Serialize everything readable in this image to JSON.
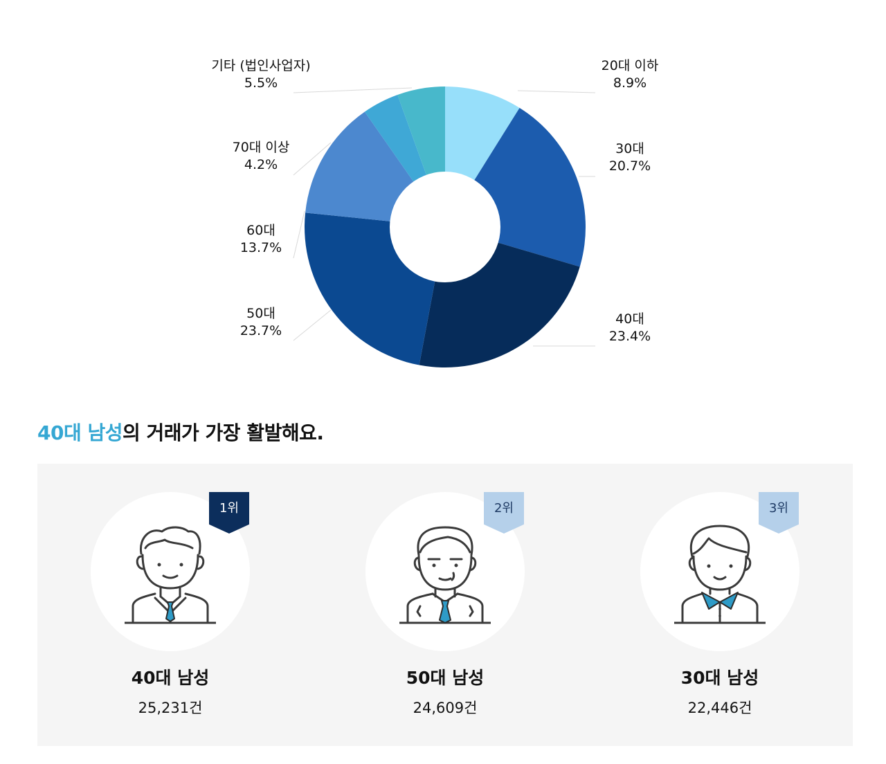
{
  "chart_data": {
    "type": "pie",
    "donut": true,
    "slices": [
      {
        "label": "20대 이하",
        "value_text": "8.9%",
        "value": 8.9,
        "color": "#97dffa"
      },
      {
        "label": "30대",
        "value_text": "20.7%",
        "value": 20.7,
        "color": "#1c5cae"
      },
      {
        "label": "40대",
        "value_text": "23.4%",
        "value": 23.4,
        "color": "#062c5a"
      },
      {
        "label": "50대",
        "value_text": "23.7%",
        "value": 23.7,
        "color": "#0b4991"
      },
      {
        "label": "60대",
        "value_text": "13.7%",
        "value": 13.7,
        "color": "#4c88cf"
      },
      {
        "label": "70대 이상",
        "value_text": "4.2%",
        "value": 4.2,
        "color": "#3fa8d6"
      },
      {
        "label": "기타 (법인사업자)",
        "value_text": "5.5%",
        "value": 5.5,
        "color": "#48b8cb"
      }
    ]
  },
  "headline": {
    "highlight": "40대 남성",
    "rest": "의 거래가 가장 활발해요."
  },
  "ranking": [
    {
      "rank": "1위",
      "name": "40대 남성",
      "count": "25,231건",
      "badge_color": "#0c2e5c"
    },
    {
      "rank": "2위",
      "name": "50대 남성",
      "count": "24,609건",
      "badge_color": "#b5d0ea"
    },
    {
      "rank": "3위",
      "name": "30대 남성",
      "count": "22,446건",
      "badge_color": "#b5d0ea"
    }
  ]
}
